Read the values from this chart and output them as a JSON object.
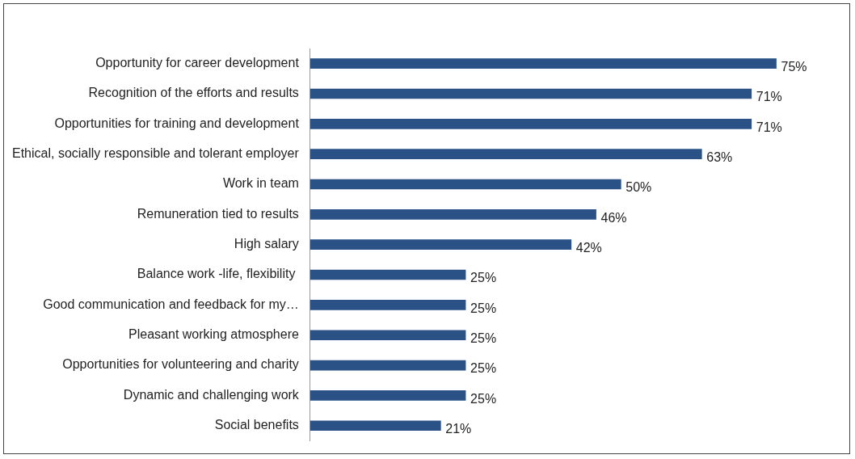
{
  "chart_data": {
    "type": "bar",
    "orientation": "horizontal",
    "categories": [
      "Opportunity for career development",
      "Recognition of the efforts and results",
      "Opportunities for training and development",
      "Ethical, socially responsible and tolerant employer",
      "Work in team",
      "Remuneration tied to results",
      "High salary",
      "Balance work -life, flexibility ",
      "Good communication and feedback for my…",
      "Pleasant working atmosphere",
      "Opportunities for volunteering and charity",
      "Dynamic and challenging work",
      "Social benefits"
    ],
    "values": [
      75,
      71,
      71,
      63,
      50,
      46,
      42,
      25,
      25,
      25,
      25,
      25,
      21
    ],
    "value_labels": [
      "75%",
      "71%",
      "71%",
      "63%",
      "50%",
      "46%",
      "42%",
      "25%",
      "25%",
      "25%",
      "25%",
      "25%",
      "21%"
    ],
    "color": "#2b5286",
    "tick_labels": "y"
  }
}
